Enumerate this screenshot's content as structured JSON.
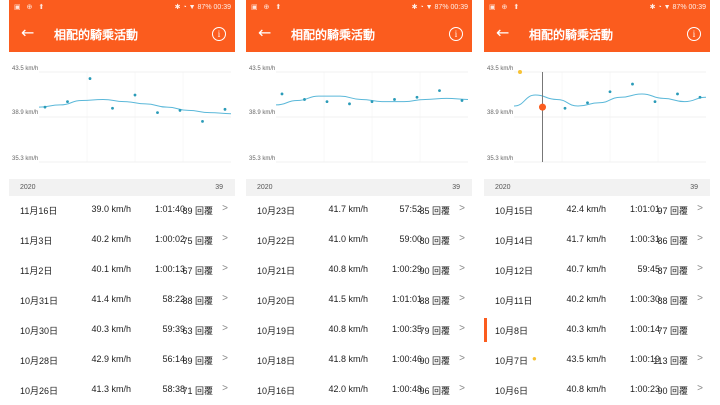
{
  "colors": {
    "accent": "#fb5c1e",
    "line": "#5bb8d9",
    "highlight": "#f7c234"
  },
  "statusbar": {
    "left": "▣ ⊕ ⬆",
    "right": "✱ ◔ ▼ 87% 00:39"
  },
  "appbar": {
    "title": "相配的騎乘活動",
    "back_icon": "←",
    "info_icon": "i"
  },
  "panels": [
    {
      "y_labels": {
        "top": "43.5 km/h",
        "mid": "38.9 km/h",
        "bottom": "35.3 km/h"
      },
      "year": "2020",
      "count": "39",
      "chart_data": {
        "type": "scatter",
        "yticks": [
          "43.5 km/h",
          "38.9 km/h",
          "35.3 km/h"
        ],
        "ylim": [
          35.3,
          43.5
        ],
        "points": [
          40.3,
          40.8,
          42.9,
          40.2,
          41.4,
          39.8,
          40.0,
          39.0,
          40.1
        ],
        "trend": [
          40.3,
          40.5,
          40.9,
          41.0,
          40.8,
          40.6,
          40.3,
          40.0,
          39.8,
          39.7
        ]
      },
      "rows": [
        {
          "date": "11月16日",
          "speed": "39.0 km/h",
          "time": "1:01:40",
          "hr": "89 回覆",
          "chev": ">"
        },
        {
          "date": "11月3日",
          "speed": "40.2 km/h",
          "time": "1:00:02",
          "hr": "75 回覆",
          "chev": ">"
        },
        {
          "date": "11月2日",
          "speed": "40.1 km/h",
          "time": "1:00:13",
          "hr": "67 回覆",
          "chev": ">"
        },
        {
          "date": "10月31日",
          "speed": "41.4 km/h",
          "time": "58:22",
          "hr": "88 回覆",
          "chev": ">"
        },
        {
          "date": "10月30日",
          "speed": "40.3 km/h",
          "time": "59:39",
          "hr": "63 回覆",
          "chev": ">"
        },
        {
          "date": "10月28日",
          "speed": "42.9 km/h",
          "time": "56:14",
          "hr": "89 回覆",
          "chev": ">"
        },
        {
          "date": "10月26日",
          "speed": "41.3 km/h",
          "time": "58:38",
          "hr": "71 回覆",
          "chev": ">"
        }
      ]
    },
    {
      "y_labels": {
        "top": "43.5 km/h",
        "mid": "38.9 km/h",
        "bottom": "35.3 km/h"
      },
      "year": "2020",
      "count": "39",
      "chart_data": {
        "type": "scatter",
        "yticks": [
          "43.5 km/h",
          "38.9 km/h",
          "35.3 km/h"
        ],
        "ylim": [
          35.3,
          43.5
        ],
        "points": [
          41.5,
          41.0,
          40.8,
          40.6,
          40.8,
          41.0,
          41.2,
          41.8,
          40.9
        ],
        "trend": [
          40.5,
          40.9,
          41.3,
          41.3,
          41.0,
          40.8,
          40.8,
          41.0,
          41.1,
          41.0
        ]
      },
      "rows": [
        {
          "date": "10月23日",
          "speed": "41.7 km/h",
          "time": "57:52",
          "hr": "85 回覆",
          "chev": ">"
        },
        {
          "date": "10月22日",
          "speed": "41.0 km/h",
          "time": "59:00",
          "hr": "80 回覆",
          "chev": ">"
        },
        {
          "date": "10月21日",
          "speed": "40.8 km/h",
          "time": "1:00:29",
          "hr": "90 回覆",
          "chev": ">"
        },
        {
          "date": "10月20日",
          "speed": "41.5 km/h",
          "time": "1:01:01",
          "hr": "88 回覆",
          "chev": ">"
        },
        {
          "date": "10月19日",
          "speed": "40.8 km/h",
          "time": "1:00:35",
          "hr": "79 回覆",
          "chev": ">"
        },
        {
          "date": "10月18日",
          "speed": "41.8 km/h",
          "time": "1:00:46",
          "hr": "90 回覆",
          "chev": ">"
        },
        {
          "date": "10月16日",
          "speed": "42.0 km/h",
          "time": "1:00:48",
          "hr": "96 回覆",
          "chev": ">"
        }
      ]
    },
    {
      "y_labels": {
        "top": "43.5 km/h",
        "mid": "38.9 km/h",
        "bottom": "35.3 km/h"
      },
      "year": "2020",
      "count": "39",
      "chart_data": {
        "type": "scatter",
        "yticks": [
          "43.5 km/h",
          "38.9 km/h",
          "35.3 km/h"
        ],
        "ylim": [
          35.3,
          43.5
        ],
        "points": [
          43.5,
          40.3,
          40.2,
          40.7,
          41.7,
          42.4,
          40.8,
          41.5,
          41.2
        ],
        "trend": [
          40.4,
          41.4,
          41.0,
          40.4,
          40.7,
          41.2,
          41.5,
          41.1,
          40.8,
          41.2
        ]
      },
      "rows": [
        {
          "date": "10月15日",
          "speed": "42.4 km/h",
          "time": "1:01:01",
          "hr": "97 回覆",
          "chev": ">"
        },
        {
          "date": "10月14日",
          "speed": "41.7 km/h",
          "time": "1:00:31",
          "hr": "86 回覆",
          "chev": ">"
        },
        {
          "date": "10月12日",
          "speed": "40.7 km/h",
          "time": "59:45",
          "hr": "87 回覆",
          "chev": ">"
        },
        {
          "date": "10月11日",
          "speed": "40.2 km/h",
          "time": "1:00:30",
          "hr": "88 回覆",
          "chev": ">"
        },
        {
          "date": "10月8日",
          "speed": "40.3 km/h",
          "time": "1:00:14",
          "hr": "77 回覆",
          "chev": ""
        },
        {
          "date": "10月7日",
          "speed": "43.5 km/h",
          "time": "1:00:19",
          "hr": "113 回覆",
          "chev": ">"
        },
        {
          "date": "10月6日",
          "speed": "40.8 km/h",
          "time": "1:00:23",
          "hr": "90 回覆",
          "chev": ">"
        }
      ]
    }
  ]
}
